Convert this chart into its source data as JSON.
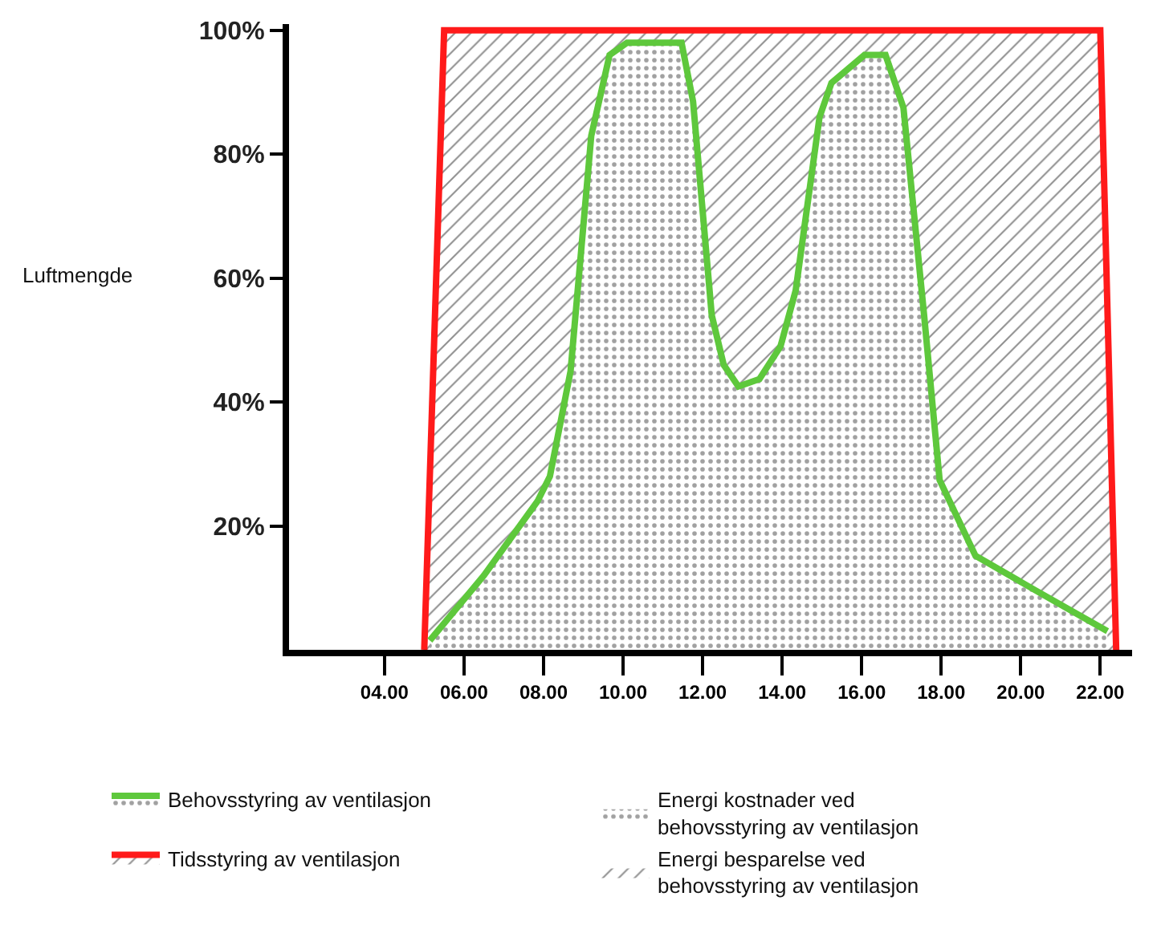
{
  "chart_data": {
    "type": "area",
    "ylabel": "Luftmengde",
    "xlim": [
      1.6,
      22.8
    ],
    "ylim": [
      0,
      101
    ],
    "xticks": [
      {
        "value": 4,
        "label": "04.00"
      },
      {
        "value": 6,
        "label": "06.00"
      },
      {
        "value": 8,
        "label": "08.00"
      },
      {
        "value": 10,
        "label": "10.00"
      },
      {
        "value": 12,
        "label": "12.00"
      },
      {
        "value": 14,
        "label": "14.00"
      },
      {
        "value": 16,
        "label": "16.00"
      },
      {
        "value": 18,
        "label": "18.00"
      },
      {
        "value": 20,
        "label": "20.00"
      },
      {
        "value": 22,
        "label": "22.00"
      }
    ],
    "yticks": [
      {
        "value": 20,
        "label": "20%"
      },
      {
        "value": 40,
        "label": "40%"
      },
      {
        "value": 60,
        "label": "60%"
      },
      {
        "value": 80,
        "label": "80%"
      },
      {
        "value": 100,
        "label": "100%"
      }
    ],
    "series": [
      {
        "name": "Behovsstyring av ventilasjon",
        "color": "#5ec83c",
        "x": [
          5.14,
          6.5,
          7.85,
          8.16,
          8.68,
          9.2,
          9.66,
          10.1,
          11.47,
          11.76,
          12.23,
          12.53,
          12.9,
          13.43,
          13.96,
          14.34,
          14.94,
          15.24,
          16.07,
          16.6,
          17.05,
          17.57,
          17.96,
          18.86,
          20.37,
          22.18
        ],
        "values": [
          1.5,
          12,
          24,
          28,
          45,
          83,
          96,
          98,
          98,
          88.5,
          54,
          46,
          42.5,
          43.7,
          49,
          58,
          86,
          91.5,
          96,
          96,
          87.5,
          54,
          27.4,
          15.2,
          9.6,
          3
        ]
      },
      {
        "name": "Tidsstyring av ventilasjon",
        "color": "#ff1a1a",
        "x": [
          5.0,
          5.5,
          22.0,
          22.4
        ],
        "values": [
          0,
          100,
          100,
          0
        ]
      }
    ],
    "annotations": [
      "Energi kostnader ved behovsstyring av ventilasjon",
      "Energi besparelse ved behovsstyring av ventilasjon"
    ],
    "legend": "bottom",
    "line_style": "solid"
  }
}
